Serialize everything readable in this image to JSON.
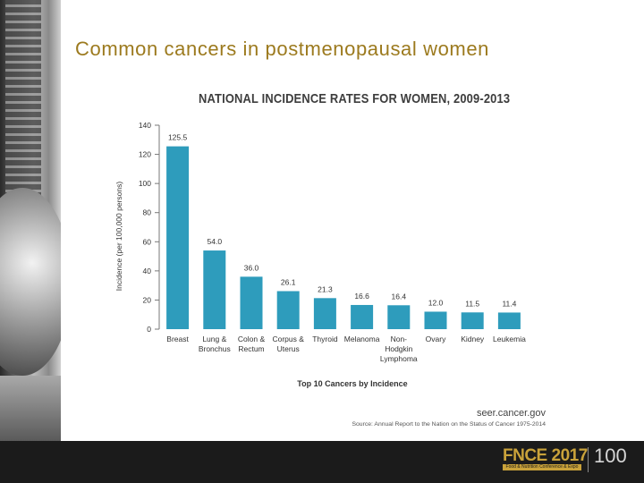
{
  "slide": {
    "title": "Common cancers in postmenopausal women"
  },
  "chart_data": {
    "type": "bar",
    "title": "NATIONAL INCIDENCE RATES FOR WOMEN, 2009-2013",
    "xlabel": "Top 10 Cancers by Incidence",
    "ylabel": "Incidence (per 100,000 persons)",
    "ylim": [
      0,
      140
    ],
    "yticks": [
      0,
      20,
      40,
      60,
      80,
      100,
      120,
      140
    ],
    "grid": false,
    "bar_color": "#2e9cbc",
    "categories": [
      [
        "Breast"
      ],
      [
        "Lung &",
        "Bronchus"
      ],
      [
        "Colon &",
        "Rectum"
      ],
      [
        "Corpus &",
        "Uterus"
      ],
      [
        "Thyroid"
      ],
      [
        "Melanoma"
      ],
      [
        "Non-",
        "Hodgkin",
        "Lymphoma"
      ],
      [
        "Ovary"
      ],
      [
        "Kidney"
      ],
      [
        "Leukemia"
      ]
    ],
    "values": [
      125.5,
      54.0,
      36.0,
      26.1,
      21.3,
      16.6,
      16.4,
      12.0,
      11.5,
      11.4
    ],
    "value_labels": [
      "125.5",
      "54.0",
      "36.0",
      "26.1",
      "21.3",
      "16.6",
      "16.4",
      "12.0",
      "11.5",
      "11.4"
    ],
    "source_site": "seer.cancer.gov",
    "source_note": "Source: Annual Report to the Nation on the Status of Cancer 1975-2014"
  },
  "footer": {
    "logo_main": "FNCE 2017",
    "logo_sub": "Food & Nutrition Conference & Expo",
    "centennial": "100",
    "accent_color": "#c9a23a"
  }
}
